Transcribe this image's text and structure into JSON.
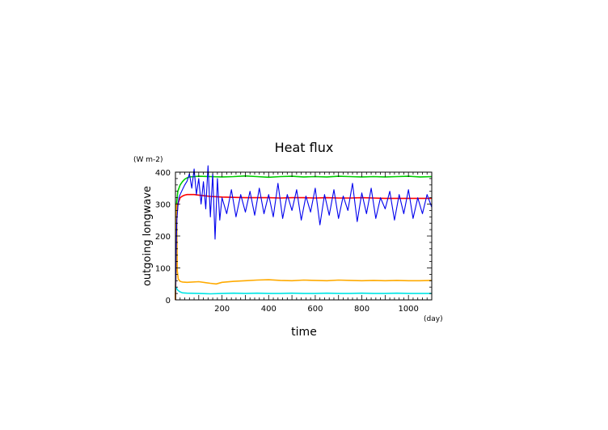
{
  "chart_data": {
    "type": "line",
    "title": "Heat flux",
    "xlabel": "time",
    "ylabel": "outgoing longwave",
    "x_unit": "(day)",
    "y_unit": "(W m-2)",
    "xlim": [
      0,
      1100
    ],
    "ylim": [
      0,
      400
    ],
    "x_major_ticks": [
      200,
      400,
      600,
      800,
      1000
    ],
    "y_major_ticks": [
      0,
      100,
      200,
      300,
      400
    ],
    "grid": false,
    "legend": "none",
    "series": [
      {
        "color": "#00cc00",
        "x": [
          0,
          5,
          10,
          20,
          30,
          40,
          50,
          60,
          80,
          100,
          150,
          200,
          250,
          300,
          350,
          400,
          450,
          500,
          550,
          600,
          650,
          700,
          750,
          800,
          850,
          900,
          950,
          1000,
          1050,
          1100
        ],
        "values": [
          0,
          300,
          340,
          360,
          370,
          378,
          382,
          385,
          386,
          387,
          386,
          385,
          386,
          388,
          386,
          384,
          386,
          387,
          385,
          386,
          385,
          387,
          386,
          385,
          386,
          385,
          386,
          387,
          385,
          386
        ]
      },
      {
        "color": "#ff0000",
        "x": [
          0,
          5,
          10,
          20,
          30,
          40,
          50,
          60,
          80,
          100,
          150,
          200,
          250,
          300,
          350,
          400,
          450,
          500,
          550,
          600,
          650,
          700,
          750,
          800,
          850,
          900,
          950,
          1000,
          1050,
          1100
        ],
        "values": [
          0,
          250,
          300,
          320,
          325,
          328,
          330,
          330,
          330,
          328,
          324,
          322,
          321,
          320,
          320,
          320,
          319,
          320,
          320,
          319,
          320,
          319,
          319,
          320,
          319,
          318,
          318,
          318,
          318,
          318
        ]
      },
      {
        "color": "#ffaa00",
        "x": [
          0,
          2,
          5,
          8,
          12,
          20,
          30,
          50,
          100,
          150,
          175,
          200,
          250,
          300,
          350,
          400,
          450,
          500,
          550,
          600,
          650,
          700,
          750,
          800,
          850,
          900,
          950,
          1000,
          1050,
          1100
        ],
        "values": [
          0,
          150,
          300,
          90,
          65,
          58,
          56,
          55,
          57,
          52,
          50,
          55,
          58,
          60,
          62,
          63,
          61,
          60,
          62,
          61,
          60,
          62,
          61,
          60,
          61,
          60,
          61,
          60,
          60,
          61
        ]
      },
      {
        "color": "#00e5e5",
        "x": [
          0,
          5,
          10,
          20,
          30,
          50,
          100,
          150,
          200,
          250,
          300,
          350,
          400,
          450,
          500,
          550,
          600,
          650,
          700,
          750,
          800,
          850,
          900,
          950,
          1000,
          1050,
          1100
        ],
        "values": [
          40,
          36,
          30,
          25,
          22,
          21,
          20,
          19,
          20,
          21,
          20,
          21,
          20,
          20,
          21,
          20,
          20,
          21,
          20,
          20,
          21,
          20,
          20,
          21,
          20,
          20,
          20
        ]
      },
      {
        "color": "#0000ee",
        "x": [
          0,
          3,
          6,
          10,
          15,
          20,
          30,
          40,
          50,
          60,
          70,
          80,
          90,
          100,
          110,
          120,
          130,
          140,
          150,
          160,
          170,
          180,
          190,
          200,
          220,
          240,
          260,
          280,
          300,
          320,
          340,
          360,
          380,
          400,
          420,
          440,
          460,
          480,
          500,
          520,
          540,
          560,
          580,
          600,
          620,
          640,
          660,
          680,
          700,
          720,
          740,
          760,
          780,
          800,
          820,
          840,
          860,
          880,
          900,
          920,
          940,
          960,
          980,
          1000,
          1020,
          1040,
          1060,
          1080,
          1100
        ],
        "values": [
          0,
          150,
          250,
          290,
          320,
          330,
          345,
          360,
          372,
          395,
          350,
          410,
          330,
          380,
          300,
          370,
          285,
          420,
          260,
          395,
          190,
          380,
          250,
          320,
          270,
          345,
          260,
          330,
          275,
          340,
          265,
          350,
          270,
          330,
          260,
          365,
          255,
          330,
          280,
          345,
          250,
          325,
          275,
          350,
          235,
          330,
          265,
          345,
          255,
          325,
          280,
          365,
          245,
          335,
          270,
          350,
          255,
          320,
          285,
          340,
          250,
          330,
          270,
          345,
          255,
          320,
          270,
          330,
          290
        ]
      }
    ]
  }
}
